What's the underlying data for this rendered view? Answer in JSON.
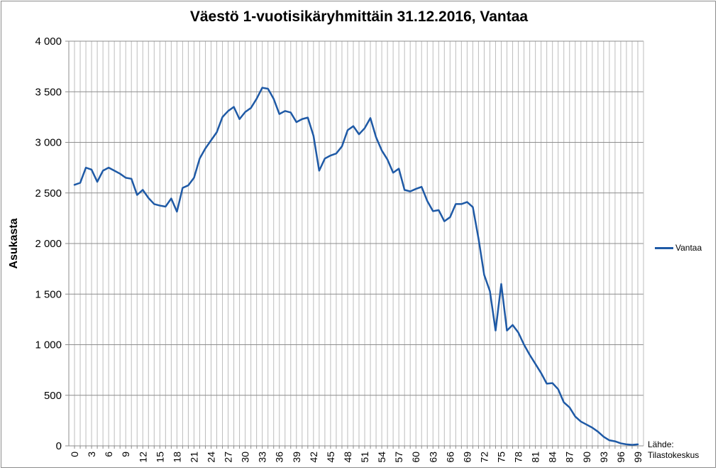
{
  "chart_data": {
    "type": "line",
    "title": "Väestö 1-vuotisikäryhmittäin 31.12.2016, Vantaa",
    "xlabel": "",
    "ylabel": "Asukasta",
    "ylim": [
      0,
      4000
    ],
    "yticks": [
      0,
      500,
      1000,
      1500,
      2000,
      2500,
      3000,
      3500,
      4000
    ],
    "ytick_labels": [
      "0",
      "500",
      "1 000",
      "1 500",
      "2 000",
      "2 500",
      "3 000",
      "3 500",
      "4 000"
    ],
    "xtick_labels": [
      "0",
      "3",
      "6",
      "9",
      "12",
      "15",
      "18",
      "21",
      "24",
      "27",
      "30",
      "33",
      "36",
      "39",
      "42",
      "45",
      "48",
      "51",
      "54",
      "57",
      "60",
      "63",
      "66",
      "69",
      "72",
      "75",
      "78",
      "81",
      "84",
      "87",
      "90",
      "93",
      "96",
      "99"
    ],
    "grid": true,
    "legend_position": "right",
    "x": [
      0,
      1,
      2,
      3,
      4,
      5,
      6,
      7,
      8,
      9,
      10,
      11,
      12,
      13,
      14,
      15,
      16,
      17,
      18,
      19,
      20,
      21,
      22,
      23,
      24,
      25,
      26,
      27,
      28,
      29,
      30,
      31,
      32,
      33,
      34,
      35,
      36,
      37,
      38,
      39,
      40,
      41,
      42,
      43,
      44,
      45,
      46,
      47,
      48,
      49,
      50,
      51,
      52,
      53,
      54,
      55,
      56,
      57,
      58,
      59,
      60,
      61,
      62,
      63,
      64,
      65,
      66,
      67,
      68,
      69,
      70,
      71,
      72,
      73,
      74,
      75,
      76,
      77,
      78,
      79,
      80,
      81,
      82,
      83,
      84,
      85,
      86,
      87,
      88,
      89,
      90,
      91,
      92,
      93,
      94,
      95,
      96,
      97,
      98,
      99
    ],
    "series": [
      {
        "name": "Vantaa",
        "color": "#1f5aa6",
        "values": [
          2580,
          2600,
          2750,
          2730,
          2610,
          2720,
          2750,
          2720,
          2690,
          2650,
          2640,
          2480,
          2530,
          2450,
          2390,
          2375,
          2365,
          2445,
          2315,
          2550,
          2575,
          2650,
          2840,
          2940,
          3020,
          3100,
          3250,
          3310,
          3350,
          3230,
          3300,
          3340,
          3430,
          3540,
          3530,
          3430,
          3280,
          3310,
          3295,
          3200,
          3230,
          3245,
          3065,
          2720,
          2840,
          2870,
          2890,
          2960,
          3120,
          3160,
          3080,
          3140,
          3240,
          3050,
          2920,
          2830,
          2700,
          2740,
          2530,
          2515,
          2540,
          2560,
          2420,
          2320,
          2330,
          2220,
          2260,
          2390,
          2390,
          2410,
          2360,
          2050,
          1690,
          1530,
          1140,
          1600,
          1140,
          1195,
          1120,
          1000,
          900,
          810,
          720,
          615,
          620,
          560,
          430,
          380,
          290,
          240,
          210,
          180,
          140,
          90,
          55,
          45,
          25,
          15,
          10,
          15
        ]
      }
    ],
    "annotation": "Lähde:\nTilastokeskus"
  }
}
